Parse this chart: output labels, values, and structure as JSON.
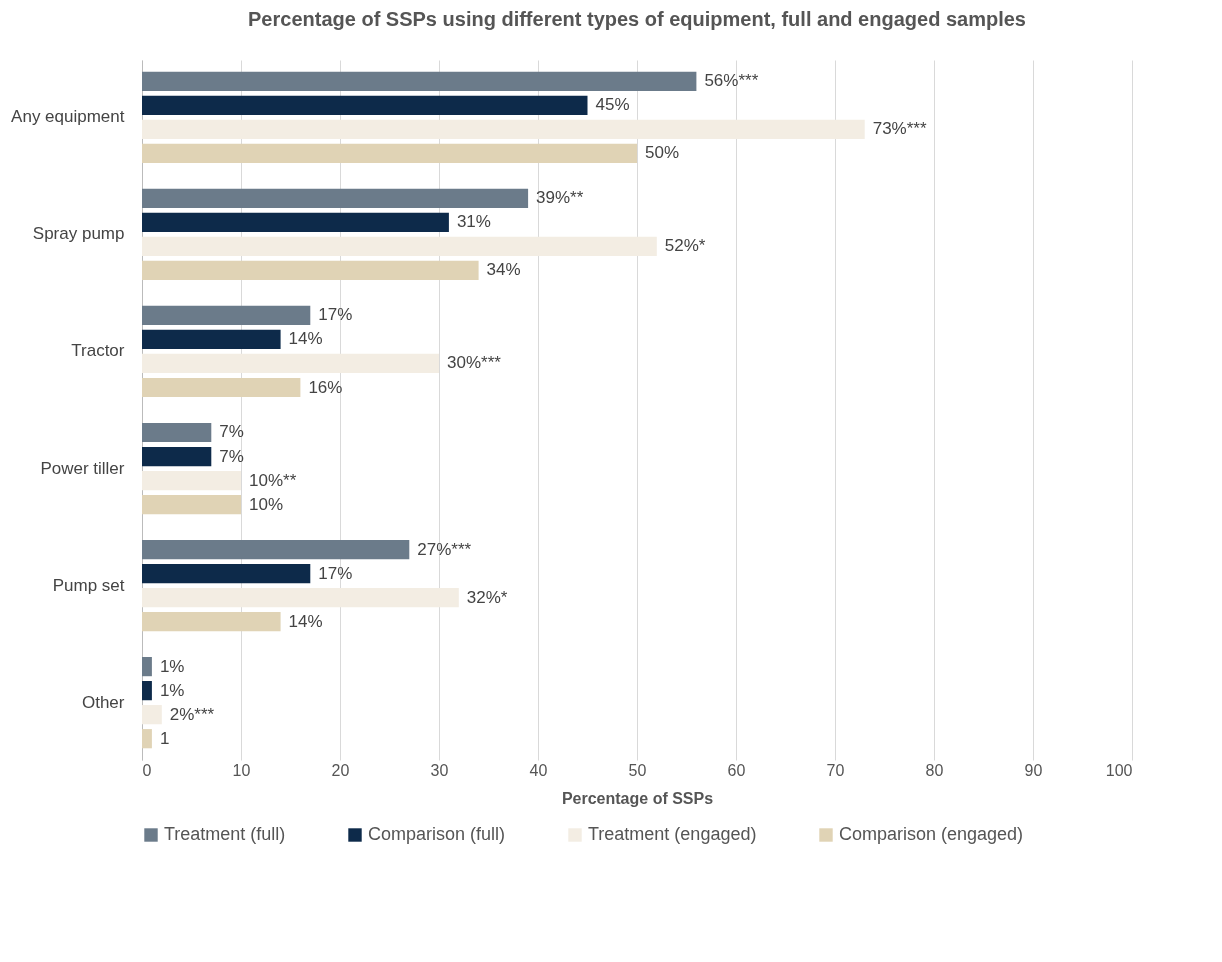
{
  "chart_data": {
    "type": "bar",
    "orientation": "horizontal",
    "title": "Percentage of SSPs using different types of equipment, full and engaged samples",
    "xlabel": "Percentage of SSPs",
    "categories": [
      "Any equipment",
      "Spray pump",
      "Tractor",
      "Power tiller",
      "Pump set",
      "Other"
    ],
    "series": [
      {
        "name": "Treatment (full)",
        "color": "#6b7b8a",
        "values": [
          56,
          39,
          17,
          7,
          27,
          1
        ],
        "value_labels": [
          "56%***",
          "39%**",
          "17%",
          "7%",
          "27%***",
          "1%"
        ]
      },
      {
        "name": "Comparison (full)",
        "color": "#0d2a4a",
        "values": [
          45,
          31,
          14,
          7,
          17,
          1
        ],
        "value_labels": [
          "45%",
          "31%",
          "14%",
          "7%",
          "17%",
          "1%"
        ]
      },
      {
        "name": "Treatment (engaged)",
        "color": "#f3ede3",
        "values": [
          73,
          52,
          30,
          10,
          32,
          2
        ],
        "value_labels": [
          "73%***",
          "52%*",
          "30%***",
          "10%**",
          "32%*",
          "2%***"
        ]
      },
      {
        "name": "Comparison (engaged)",
        "color": "#e0d3b5",
        "values": [
          50,
          34,
          16,
          10,
          14,
          1
        ],
        "value_labels": [
          "50%",
          "34%",
          "16%",
          "10%",
          "14%",
          "1"
        ]
      }
    ],
    "xlim": [
      0,
      100
    ],
    "xticks": [
      0,
      10,
      20,
      30,
      40,
      50,
      60,
      70,
      80,
      90,
      100
    ],
    "grid": "x",
    "legend": "bottom"
  }
}
